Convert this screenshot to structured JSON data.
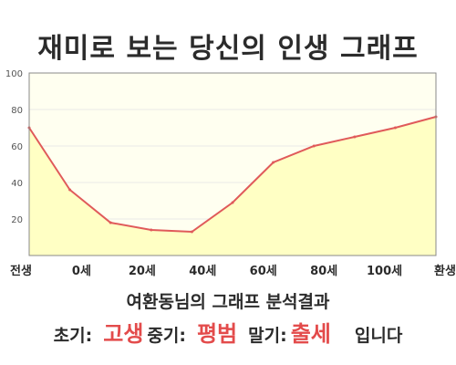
{
  "title": "재미로 보는 당신의 인생 그래프",
  "subtitle": "여환동님의 그래프 분석결과",
  "result": {
    "early_label": "초기:",
    "early_value": "고생",
    "mid_label": "중기:",
    "mid_value": "평범",
    "late_label": "말기:",
    "late_value": "출세",
    "suffix": "입니다"
  },
  "colors": {
    "line": "#e05a5a",
    "fill": "#ffffc4",
    "plot_bg": "#fffff0",
    "grid": "#e8e8e8",
    "highlight": "#e34b4b"
  },
  "chart_data": {
    "type": "area",
    "title": "",
    "xlabel": "",
    "ylabel": "",
    "x_tick_labels": [
      "전생",
      "0세",
      "20세",
      "40세",
      "60세",
      "80세",
      "100세",
      "환생"
    ],
    "y_tick_labels": [
      "20",
      "40",
      "60",
      "80",
      "100"
    ],
    "ylim": [
      0,
      100
    ],
    "grid": true,
    "series": [
      {
        "values": [
          70,
          36,
          18,
          14,
          13,
          29,
          51,
          60,
          65,
          70,
          76
        ]
      }
    ]
  }
}
